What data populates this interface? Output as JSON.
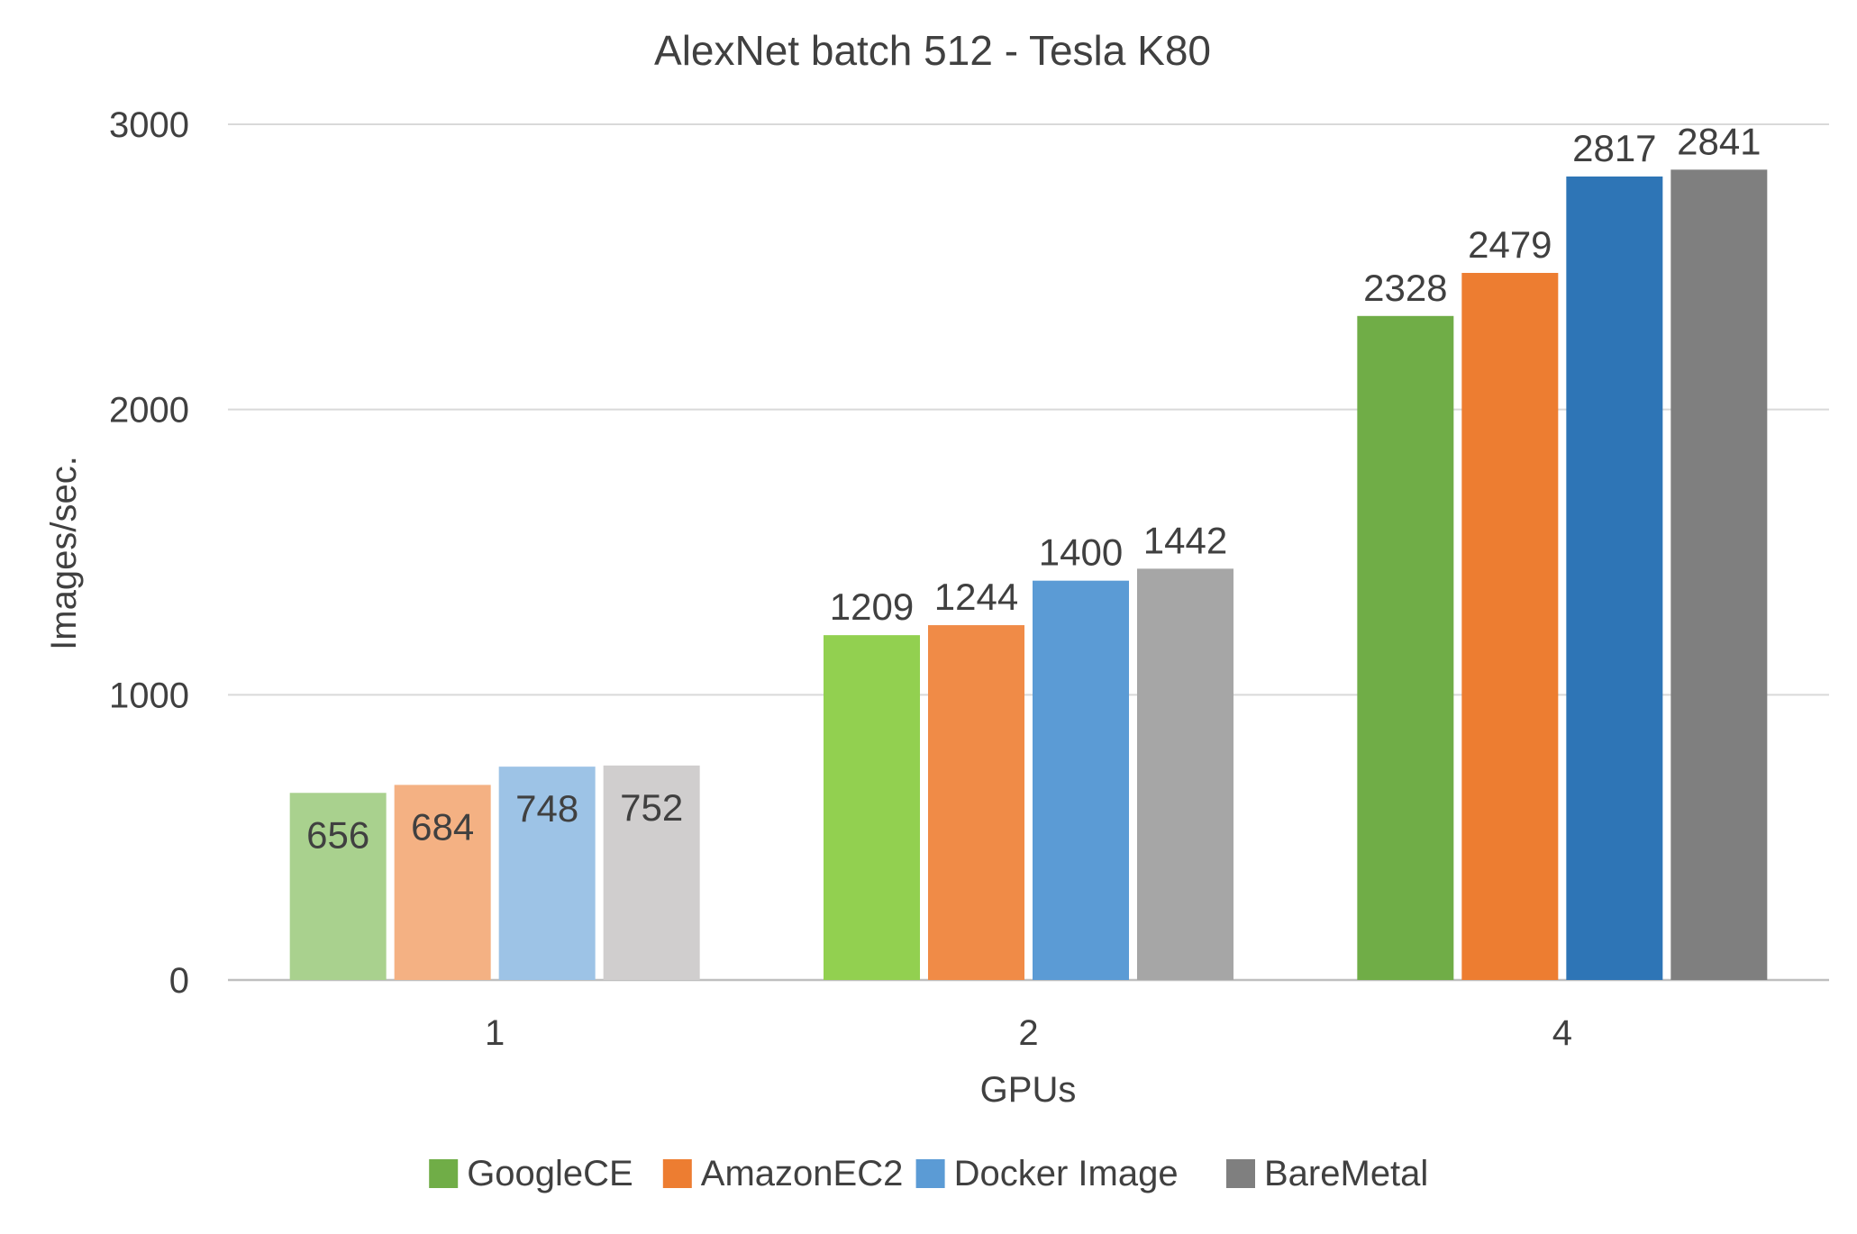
{
  "chart_data": {
    "type": "bar",
    "title": "AlexNet batch 512 - Tesla K80",
    "xlabel": "GPUs",
    "ylabel": "Images/sec.",
    "categories": [
      "1",
      "2",
      "4"
    ],
    "ylim": [
      0,
      3000
    ],
    "yticks": [
      0,
      1000,
      2000,
      3000
    ],
    "grid": true,
    "legend_position": "bottom",
    "series": [
      {
        "name": "GoogleCE",
        "values": [
          656,
          1209,
          2328
        ],
        "colors": [
          "#a9d18e",
          "#92d050",
          "#70ad47"
        ],
        "legend_color": "#70ad47"
      },
      {
        "name": "AmazonEC2",
        "values": [
          684,
          1244,
          2479
        ],
        "colors": [
          "#f4b183",
          "#f08b47",
          "#ed7d31"
        ],
        "legend_color": "#ed7d31"
      },
      {
        "name": "Docker Image",
        "values": [
          748,
          1400,
          2817
        ],
        "colors": [
          "#9dc3e6",
          "#5b9bd5",
          "#2e75b6"
        ],
        "legend_color": "#5b9bd5"
      },
      {
        "name": "BareMetal",
        "values": [
          752,
          1442,
          2841
        ],
        "colors": [
          "#d0cece",
          "#a6a6a6",
          "#7f7f7f"
        ],
        "legend_color": "#7f7f7f"
      }
    ],
    "data_label_positions": [
      "inside-end",
      "outside-end",
      "outside-end"
    ]
  }
}
